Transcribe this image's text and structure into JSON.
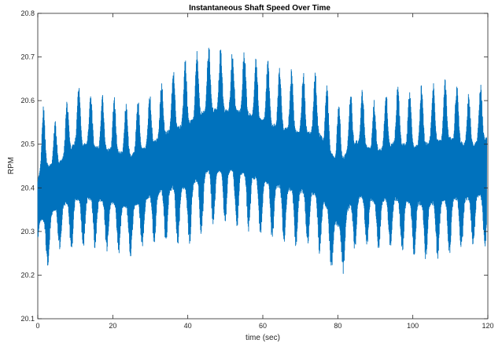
{
  "chart_data": {
    "type": "line",
    "title": "Instantaneous Shaft Speed Over Time",
    "xlabel": "time (sec)",
    "ylabel": "RPM",
    "xlim": [
      0,
      120
    ],
    "ylim": [
      20.1,
      20.8
    ],
    "xticks": [
      0,
      20,
      40,
      60,
      80,
      100,
      120
    ],
    "yticks": [
      20.1,
      20.2,
      20.3,
      20.4,
      20.5,
      20.6,
      20.7,
      20.8
    ],
    "grid": false,
    "legend": "none",
    "series": [
      {
        "color": "#0072BD",
        "envelope_x": [
          0,
          1.5,
          5,
          10,
          15,
          20,
          25,
          30,
          35,
          40,
          45,
          50,
          55,
          60,
          65,
          70,
          75,
          80,
          85,
          90,
          95,
          100,
          105,
          110,
          115,
          119.5
        ],
        "envelope_max": [
          20.52,
          20.59,
          20.55,
          20.64,
          20.62,
          20.61,
          20.6,
          20.62,
          20.67,
          20.7,
          20.73,
          20.72,
          20.72,
          20.7,
          20.68,
          20.67,
          20.67,
          20.6,
          20.64,
          20.6,
          20.64,
          20.63,
          20.65,
          20.66,
          20.62,
          20.65
        ],
        "envelope_min": [
          20.23,
          20.2,
          20.26,
          20.25,
          20.26,
          20.25,
          20.24,
          20.27,
          20.27,
          20.26,
          20.3,
          20.31,
          20.3,
          20.28,
          20.27,
          20.26,
          20.25,
          20.18,
          20.26,
          20.26,
          20.25,
          20.24,
          20.23,
          20.24,
          20.26,
          20.26
        ]
      }
    ]
  }
}
